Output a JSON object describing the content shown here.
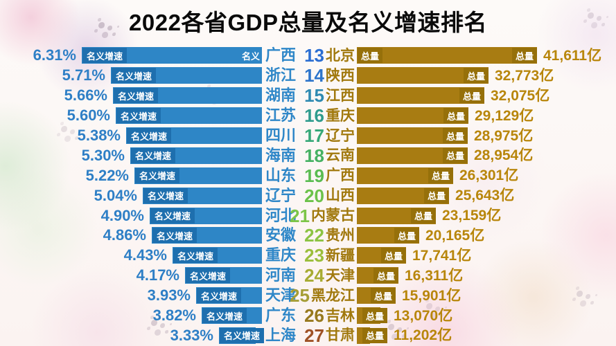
{
  "title": "2022各省GDP总量及名义增速排名",
  "labels": {
    "growth_bar_tag": "名义增速",
    "growth_bar_partial_tag": "名义",
    "total_bar_tag": "总量",
    "unit": "亿"
  },
  "colors": {
    "growth_bar": "#2e86c6",
    "growth_tag_bg": "#1e6fae",
    "growth_text": "#2e7fc6",
    "total_bar": "#a87c12",
    "total_tag_bg": "#96700a",
    "total_text": "#b8860b",
    "title_text": "#0a0a0a"
  },
  "chart_data": [
    {
      "type": "bar",
      "name": "名义增速",
      "orientation": "horizontal",
      "unit": "%",
      "sort": "descending",
      "bar_color": "#2e86c6",
      "bar_tag": "名义增速",
      "categories": [
        "广西",
        "浙江",
        "湖南",
        "江苏",
        "四川",
        "海南",
        "山东",
        "辽宁",
        "河北",
        "安徽",
        "重庆",
        "河南",
        "天津",
        "广东",
        "上海"
      ],
      "values": [
        6.31,
        5.71,
        5.66,
        5.6,
        5.38,
        5.3,
        5.22,
        5.04,
        4.9,
        4.86,
        4.43,
        4.17,
        3.93,
        3.82,
        3.33
      ]
    },
    {
      "type": "bar",
      "name": "总量",
      "orientation": "horizontal",
      "unit": "亿",
      "sort": "descending",
      "bar_color": "#a87c12",
      "bar_tag": "总量",
      "ranks": [
        13,
        14,
        15,
        16,
        17,
        18,
        19,
        20,
        21,
        22,
        23,
        24,
        25,
        26,
        27
      ],
      "categories": [
        "北京",
        "陕西",
        "江西",
        "重庆",
        "辽宁",
        "云南",
        "广西",
        "山西",
        "内蒙古",
        "贵州",
        "新疆",
        "天津",
        "黑龙江",
        "吉林",
        "甘肃"
      ],
      "values": [
        41611,
        32773,
        32075,
        29129,
        28975,
        28954,
        26301,
        25643,
        23159,
        20165,
        17741,
        16311,
        15901,
        13070,
        11202
      ]
    }
  ],
  "rows": [
    {
      "pct": "6.31%",
      "growth": 6.31,
      "gprov": "广西",
      "rank": "13",
      "rank_color": "#2b6ed2",
      "tprov": "北京",
      "total": 41611,
      "total_text": "41,611亿"
    },
    {
      "pct": "5.71%",
      "growth": 5.71,
      "gprov": "浙江",
      "rank": "14",
      "rank_color": "#2c74cb",
      "tprov": "陕西",
      "total": 32773,
      "total_text": "32,773亿"
    },
    {
      "pct": "5.66%",
      "growth": 5.66,
      "gprov": "湖南",
      "rank": "15",
      "rank_color": "#2e8ab2",
      "tprov": "江西",
      "total": 32075,
      "total_text": "32,075亿"
    },
    {
      "pct": "5.60%",
      "growth": 5.6,
      "gprov": "江苏",
      "rank": "16",
      "rank_color": "#2f9c8e",
      "tprov": "重庆",
      "total": 29129,
      "total_text": "29,129亿"
    },
    {
      "pct": "5.38%",
      "growth": 5.38,
      "gprov": "四川",
      "rank": "17",
      "rank_color": "#36a878",
      "tprov": "辽宁",
      "total": 28975,
      "total_text": "28,975亿"
    },
    {
      "pct": "5.30%",
      "growth": 5.3,
      "gprov": "海南",
      "rank": "18",
      "rank_color": "#45b162",
      "tprov": "云南",
      "total": 28954,
      "total_text": "28,954亿"
    },
    {
      "pct": "5.22%",
      "growth": 5.22,
      "gprov": "山东",
      "rank": "19",
      "rank_color": "#5abc51",
      "tprov": "广西",
      "total": 26301,
      "total_text": "26,301亿"
    },
    {
      "pct": "5.04%",
      "growth": 5.04,
      "gprov": "辽宁",
      "rank": "20",
      "rank_color": "#6cc24a",
      "tprov": "山西",
      "total": 25643,
      "total_text": "25,643亿"
    },
    {
      "pct": "4.90%",
      "growth": 4.9,
      "gprov": "河北",
      "rank": "21",
      "rank_color": "#7cc548",
      "tprov": "内蒙古",
      "total": 23159,
      "total_text": "23,159亿"
    },
    {
      "pct": "4.86%",
      "growth": 4.86,
      "gprov": "安徽",
      "rank": "22",
      "rank_color": "#8cc343",
      "tprov": "贵州",
      "total": 20165,
      "total_text": "20,165亿"
    },
    {
      "pct": "4.43%",
      "growth": 4.43,
      "gprov": "重庆",
      "rank": "23",
      "rank_color": "#9bbe3b",
      "tprov": "新疆",
      "total": 17741,
      "total_text": "17,741亿"
    },
    {
      "pct": "4.17%",
      "growth": 4.17,
      "gprov": "河南",
      "rank": "24",
      "rank_color": "#a7ab32",
      "tprov": "天津",
      "total": 16311,
      "total_text": "16,311亿"
    },
    {
      "pct": "3.93%",
      "growth": 3.93,
      "gprov": "天津",
      "rank": "25",
      "rank_color": "#a59d35",
      "tprov": "黑龙江",
      "total": 15901,
      "total_text": "15,901亿"
    },
    {
      "pct": "3.82%",
      "growth": 3.82,
      "gprov": "广东",
      "rank": "26",
      "rank_color": "#97791d",
      "tprov": "吉林",
      "total": 13070,
      "total_text": "13,070亿"
    },
    {
      "pct": "3.33%",
      "growth": 3.33,
      "gprov": "上海",
      "rank": "27",
      "rank_color": "#9e5125",
      "tprov": "甘肃",
      "total": 11202,
      "total_text": "11,202亿"
    }
  ]
}
